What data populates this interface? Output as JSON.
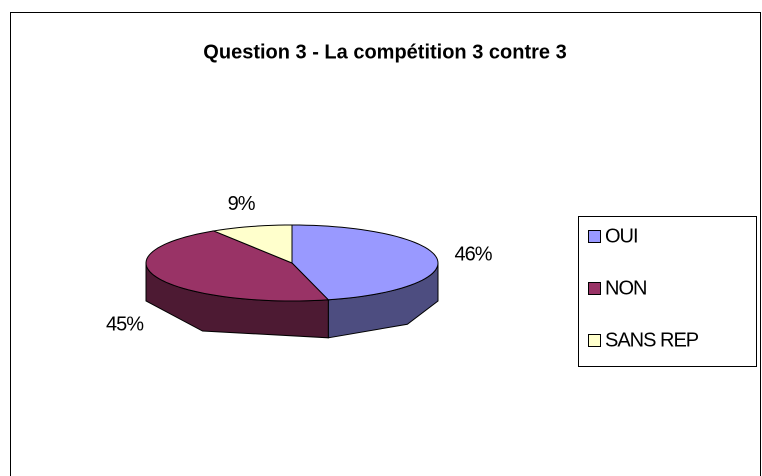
{
  "chart_data": {
    "type": "pie",
    "title": "Question 3 - La compétition 3 contre 3",
    "categories": [
      "OUI",
      "NON",
      "SANS REP"
    ],
    "values": [
      46,
      45,
      9
    ],
    "value_labels": [
      "46%",
      "45%",
      "9%"
    ],
    "colors": [
      "#9999ff",
      "#993366",
      "#ffffcc"
    ],
    "legend": "right"
  }
}
